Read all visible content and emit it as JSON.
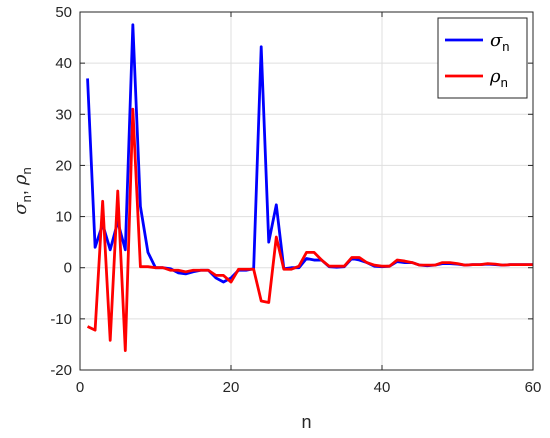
{
  "chart_data": {
    "type": "line",
    "title": "",
    "xlabel": "n",
    "ylabel": {
      "main1": "σ",
      "sub1": "n",
      "sep": ", ",
      "main2": "ρ",
      "sub2": "n"
    },
    "xlim": [
      0,
      60
    ],
    "ylim": [
      -20,
      50
    ],
    "xticks": [
      0,
      20,
      40,
      60
    ],
    "yticks": [
      -20,
      -10,
      0,
      10,
      20,
      30,
      40,
      50
    ],
    "grid": true,
    "legend_position": "top-right",
    "x": [
      1,
      2,
      3,
      4,
      5,
      6,
      7,
      8,
      9,
      10,
      11,
      12,
      13,
      14,
      15,
      16,
      17,
      18,
      19,
      20,
      21,
      22,
      23,
      24,
      25,
      26,
      27,
      28,
      29,
      30,
      31,
      32,
      33,
      34,
      35,
      36,
      37,
      38,
      39,
      40,
      41,
      42,
      43,
      44,
      45,
      46,
      47,
      48,
      49,
      50,
      51,
      52,
      53,
      54,
      55,
      56,
      57,
      58,
      59,
      60
    ],
    "series": [
      {
        "name": "σ",
        "name_sub": "n",
        "color": "#0000ff",
        "values": [
          37,
          4,
          8.5,
          3.5,
          9,
          3.5,
          47.5,
          12,
          3,
          0,
          0,
          -0.2,
          -1,
          -1.2,
          -0.8,
          -0.5,
          -0.5,
          -2,
          -2.8,
          -2,
          -0.5,
          -0.5,
          -0.2,
          43.2,
          5,
          12.3,
          -0.2,
          0,
          0,
          1.8,
          1.5,
          1.5,
          0.2,
          0.1,
          0.2,
          1.8,
          1.5,
          1,
          0.3,
          0.2,
          0.3,
          1.2,
          1,
          1,
          0.5,
          0.4,
          0.5,
          0.8,
          0.8,
          0.7,
          0.5,
          0.6,
          0.6,
          0.7,
          0.6,
          0.5,
          0.6,
          0.6,
          0.6,
          0.6
        ]
      },
      {
        "name": "ρ",
        "name_sub": "n",
        "color": "#ff0000",
        "values": [
          -11.5,
          -12.2,
          13,
          -14.2,
          15,
          -16.2,
          31,
          0.2,
          0.2,
          0,
          0,
          -0.5,
          -0.5,
          -0.8,
          -0.5,
          -0.5,
          -0.5,
          -1.5,
          -1.5,
          -2.8,
          -0.3,
          -0.3,
          -0.3,
          -6.5,
          -6.8,
          6,
          -0.3,
          -0.3,
          0.3,
          3,
          3,
          1.5,
          0.3,
          0.3,
          0.3,
          2,
          2,
          1,
          0.5,
          0.3,
          0.3,
          1.5,
          1.3,
          1,
          0.5,
          0.5,
          0.5,
          1,
          1,
          0.8,
          0.5,
          0.6,
          0.6,
          0.8,
          0.7,
          0.5,
          0.6,
          0.6,
          0.6,
          0.6
        ]
      }
    ]
  }
}
